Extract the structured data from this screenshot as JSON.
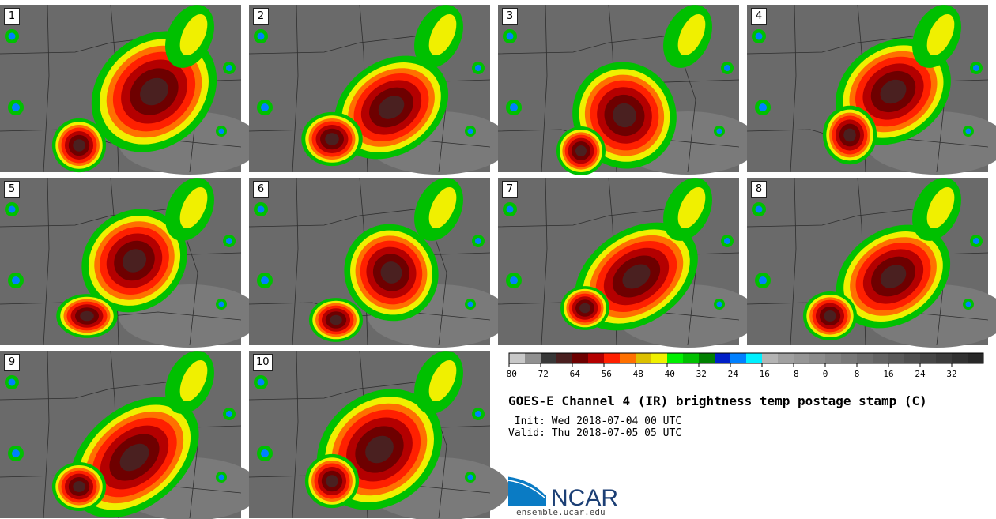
{
  "panels": [
    {
      "label": "1"
    },
    {
      "label": "2"
    },
    {
      "label": "3"
    },
    {
      "label": "4"
    },
    {
      "label": "5"
    },
    {
      "label": "6"
    },
    {
      "label": "7"
    },
    {
      "label": "8"
    },
    {
      "label": "9"
    },
    {
      "label": "10"
    }
  ],
  "colorbar": {
    "colors": [
      "#c8c8c8",
      "#909090",
      "#383838",
      "#4a2020",
      "#6e0000",
      "#b40000",
      "#ff2000",
      "#ff7000",
      "#dcc000",
      "#f0f000",
      "#00f000",
      "#00c000",
      "#008000",
      "#0020c8",
      "#0080ff",
      "#00f0ff",
      "#b4b4b4",
      "#a0a0a0",
      "#969696",
      "#8c8c8c",
      "#828282",
      "#787878",
      "#6e6e6e",
      "#646464",
      "#5a5a5a",
      "#505050",
      "#464646",
      "#3c3c3c",
      "#323232",
      "#282828"
    ],
    "ticks": [
      "−80",
      "−72",
      "−64",
      "−56",
      "−48",
      "−40",
      "−32",
      "−24",
      "−16",
      "−8",
      "0",
      "8",
      "16",
      "24",
      "32"
    ]
  },
  "title": "GOES-E Channel 4 (IR) brightness temp postage stamp (C)",
  "init": " Init: Wed 2018-07-04 00 UTC",
  "valid": "Valid: Thu 2018-07-05 05 UTC",
  "logo": {
    "text": "NCAR"
  },
  "site": "ensemble.ucar.edu"
}
